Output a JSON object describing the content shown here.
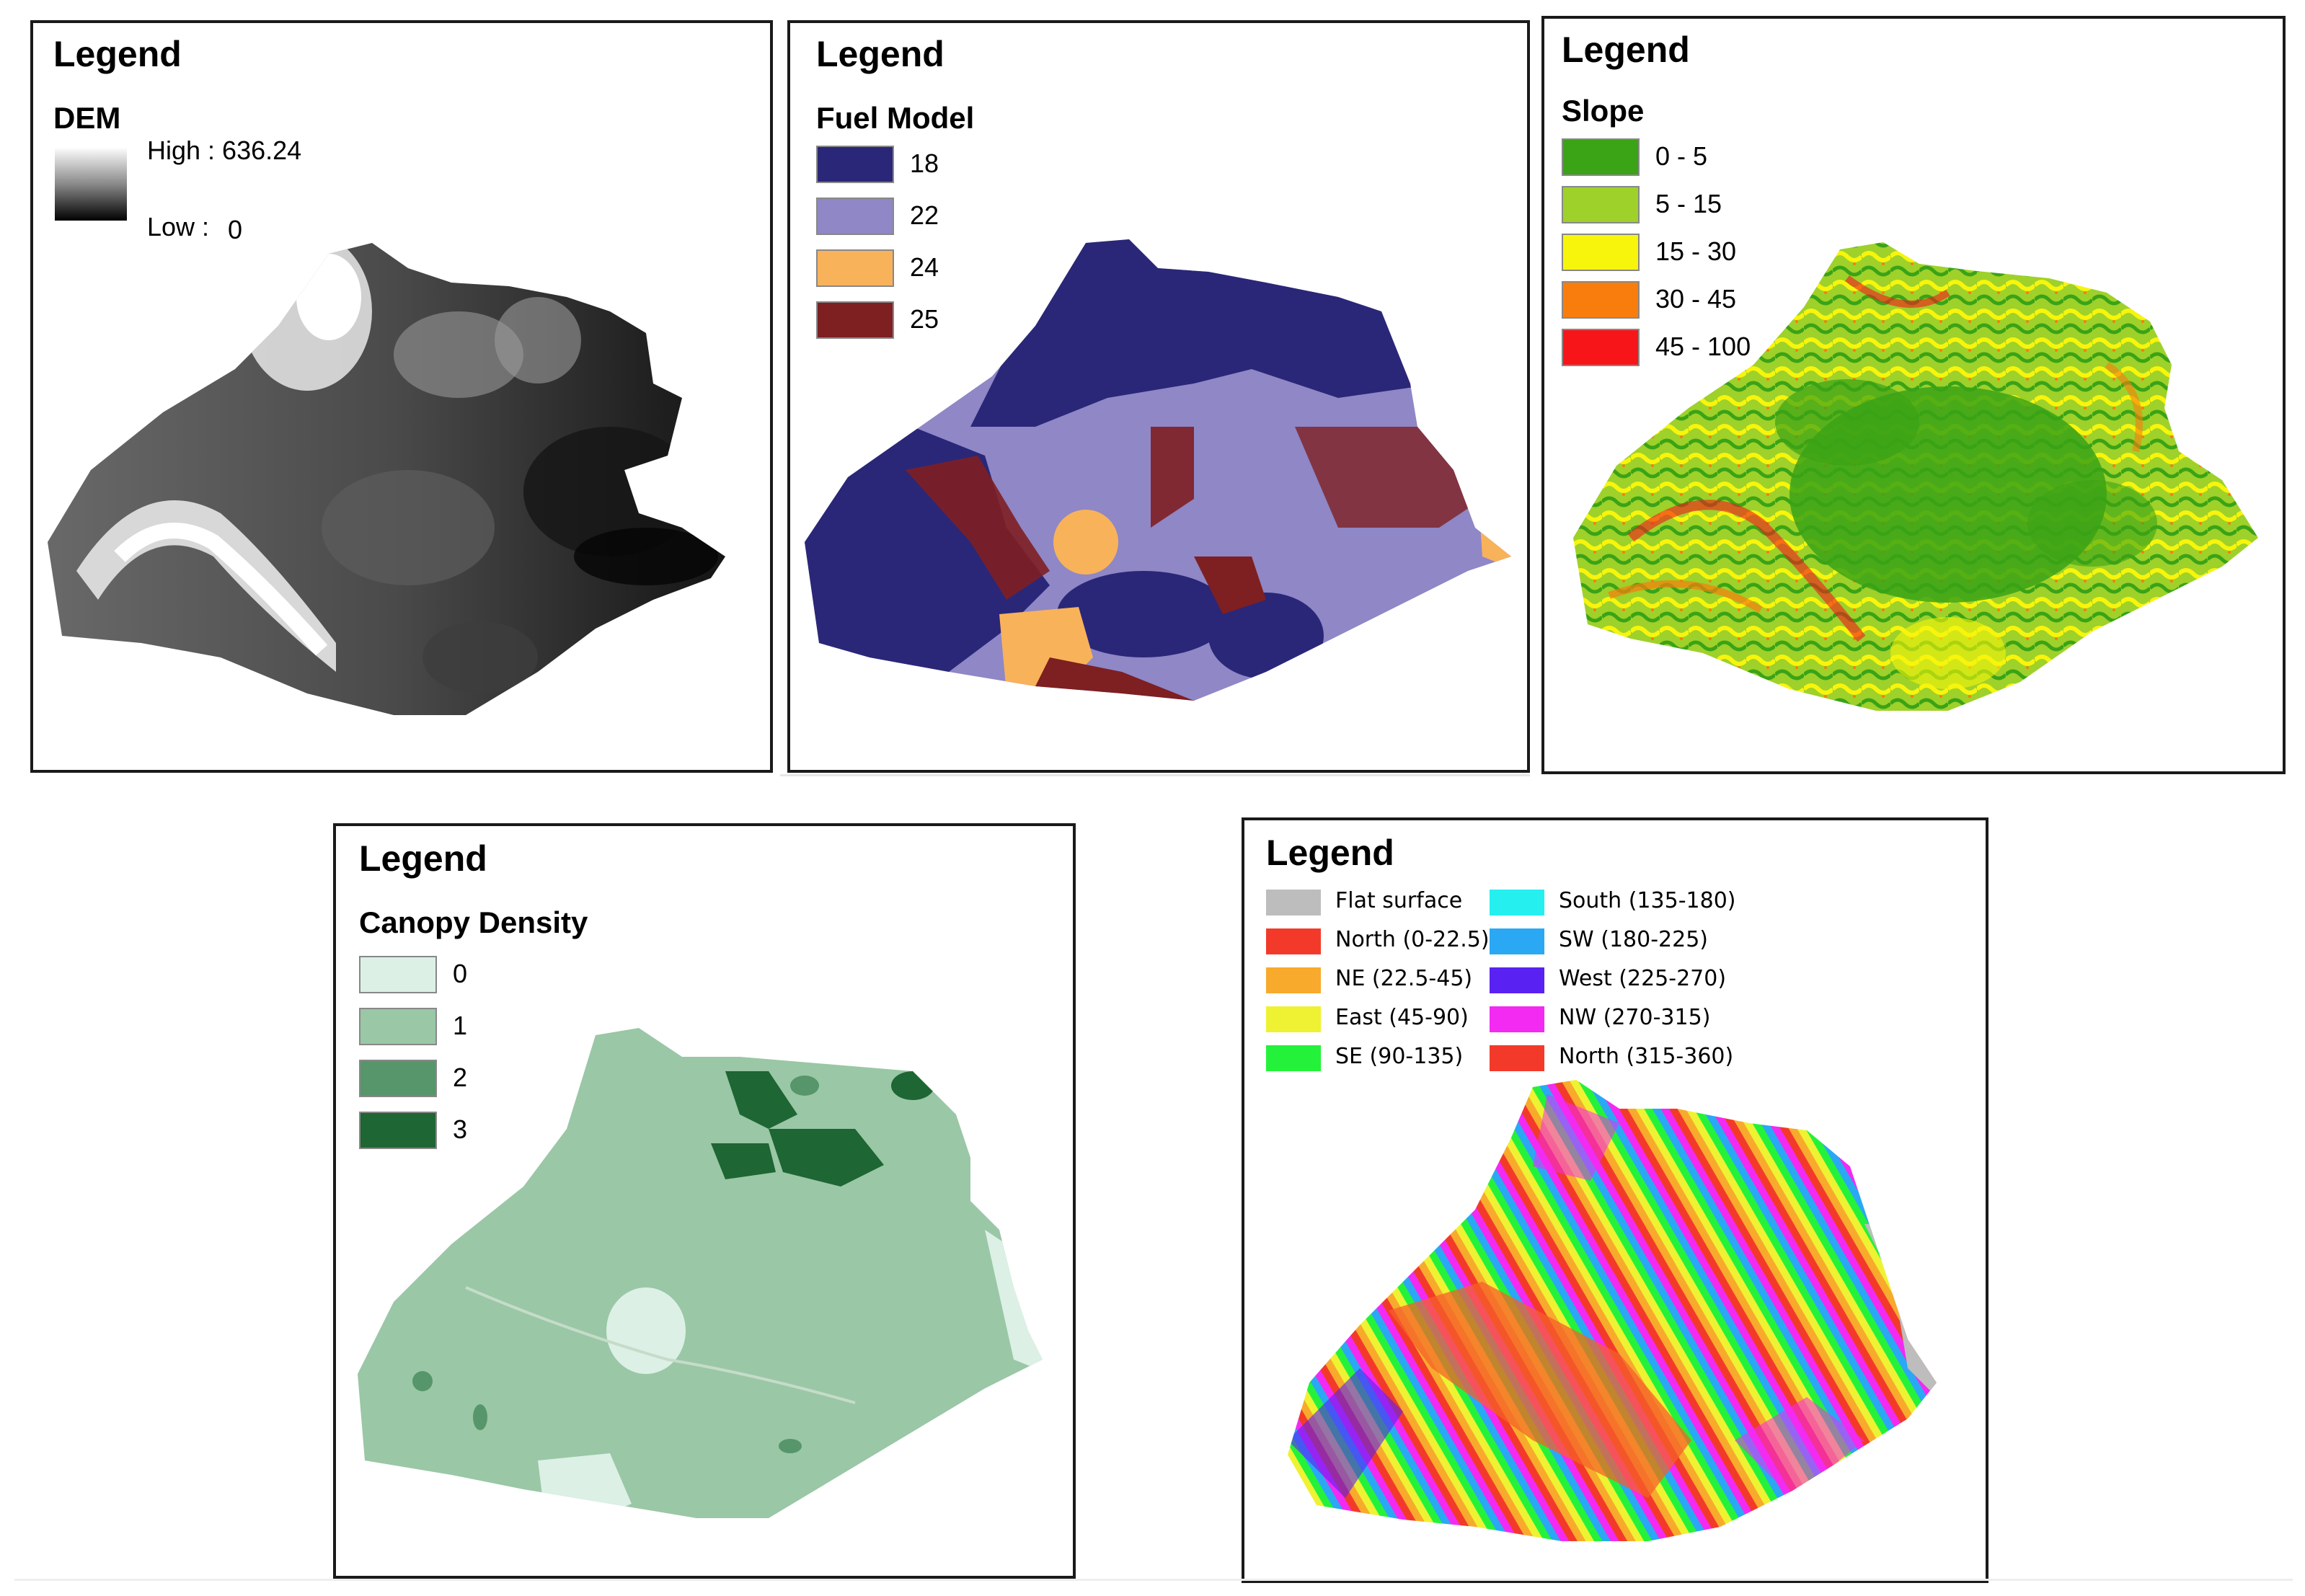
{
  "panels": {
    "dem": {
      "legend_title": "Legend",
      "layer_name": "DEM",
      "high_label": "High : 636.24",
      "low_label": "Low :",
      "low_value": "0",
      "colors": {
        "high": "#ffffff",
        "low": "#000000"
      }
    },
    "fuel": {
      "legend_title": "Legend",
      "layer_name": "Fuel Model",
      "classes": [
        {
          "label": "18",
          "color": "#2a2778"
        },
        {
          "label": "22",
          "color": "#8f87c6"
        },
        {
          "label": "24",
          "color": "#f8b25a"
        },
        {
          "label": "25",
          "color": "#7e1f22"
        }
      ]
    },
    "slope": {
      "legend_title": "Legend",
      "layer_name": "Slope",
      "classes": [
        {
          "label": "0 - 5",
          "color": "#3aa316"
        },
        {
          "label": "5 - 15",
          "color": "#9ed12a"
        },
        {
          "label": "15 - 30",
          "color": "#f7f50c"
        },
        {
          "label": "30 - 45",
          "color": "#f97d0c"
        },
        {
          "label": "45 - 100",
          "color": "#f7151a"
        }
      ]
    },
    "canopy": {
      "legend_title": "Legend",
      "layer_name": "Canopy Density",
      "classes": [
        {
          "label": "0",
          "color": "#dcf0e6"
        },
        {
          "label": "1",
          "color": "#9ac7a6"
        },
        {
          "label": "2",
          "color": "#56966a"
        },
        {
          "label": "3",
          "color": "#1e6633"
        }
      ]
    },
    "aspect": {
      "legend_title": "Legend",
      "classes_left": [
        {
          "label": "Flat surface",
          "color": "#bdbdbd"
        },
        {
          "label": "North (0-22.5)",
          "color": "#f33a2a"
        },
        {
          "label": "NE (22.5-45)",
          "color": "#f8aa2c"
        },
        {
          "label": "East (45-90)",
          "color": "#eef232"
        },
        {
          "label": "SE (90-135)",
          "color": "#24f23a"
        }
      ],
      "classes_right": [
        {
          "label": "South (135-180)",
          "color": "#25f0ef"
        },
        {
          "label": "SW (180-225)",
          "color": "#2aa8f4"
        },
        {
          "label": "West (225-270)",
          "color": "#5a22f2"
        },
        {
          "label": "NW (270-315)",
          "color": "#f22af2"
        },
        {
          "label": "North (315-360)",
          "color": "#f33a2a"
        }
      ]
    }
  }
}
